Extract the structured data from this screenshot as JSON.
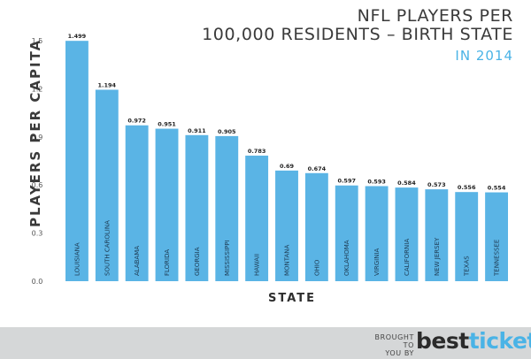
{
  "header": {
    "title_line1": "NFL PLAYERS PER",
    "title_line2": "100,000 RESIDENTS – BIRTH STATE",
    "subtitle": "IN 2014"
  },
  "footer": {
    "brought_line1": "BROUGHT TO",
    "brought_line2": "YOU BY",
    "logo_part1": "best",
    "logo_part2": "tickets"
  },
  "colors": {
    "bar": "#5ab4e5",
    "accent": "#4ab3e6",
    "footer_bg": "#d5d7d8"
  },
  "chart_data": {
    "type": "bar",
    "categories": [
      "LOUISIANA",
      "SOUTH CAROLINA",
      "ALABAMA",
      "FLORIDA",
      "GEORGIA",
      "MISSISSIPPI",
      "HAWAII",
      "MONTANA",
      "OHIO",
      "OKLAHOMA",
      "VIRGINIA",
      "CALIFORNIA",
      "NEW JERSEY",
      "TEXAS",
      "TENNESSEE"
    ],
    "values": [
      1.499,
      1.194,
      0.972,
      0.951,
      0.911,
      0.905,
      0.783,
      0.69,
      0.674,
      0.597,
      0.593,
      0.584,
      0.573,
      0.556,
      0.554
    ],
    "value_labels": [
      "1.499",
      "1.194",
      "0.972",
      "0.951",
      "0.911",
      "0.905",
      "0.783",
      "0.69",
      "0.674",
      "0.597",
      "0.593",
      "0.584",
      "0.573",
      "0.556",
      "0.554"
    ],
    "title": "NFL PLAYERS PER 100,000 RESIDENTS – BIRTH STATE",
    "subtitle": "IN 2014",
    "xlabel": "STATE",
    "ylabel": "PLAYERS PER CAPITA",
    "ylim": [
      0,
      1.5
    ],
    "yticks": [
      "0.0",
      "0.3",
      "0.6",
      "0.9",
      "1.2",
      "1.5"
    ],
    "grid": false,
    "legend": "none"
  }
}
